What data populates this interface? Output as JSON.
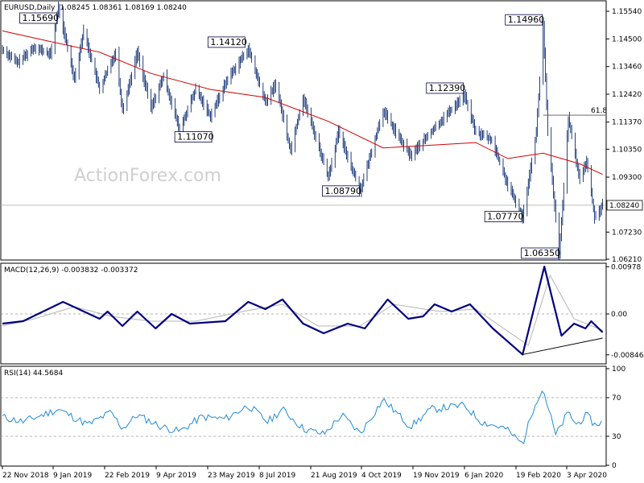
{
  "header": {
    "symbol": "EURUSD,Daily",
    "ohlc": "1.08245 1.08361 1.08169 1.08240"
  },
  "watermark": "ActionForex.com",
  "colors": {
    "candles": "#0b2a6e",
    "ma": "#d40000",
    "macd": "#000080",
    "signal": "#b5b5b5",
    "rsi": "#1f8ad6",
    "fib": "#555555",
    "grid": "#9a9a9a"
  },
  "chart_data": [
    {
      "type": "candlestick",
      "title": "EURUSD,Daily",
      "ylim": [
        1.0621,
        1.1554
      ],
      "y_ticks": [
        "1.15540",
        "1.14500",
        "1.13460",
        "1.12420",
        "1.11370",
        "1.10350",
        "1.09300",
        "1.07230",
        "1.06210"
      ],
      "current_price": "1.08240",
      "x_ticks": [
        "22 Nov 2018",
        "9 Jan 2019",
        "22 Feb 2019",
        "9 Apr 2019",
        "23 May 2019",
        "8 Jul 2019",
        "21 Aug 2019",
        "4 Oct 2019",
        "19 Nov 2019",
        "6 Jan 2020",
        "19 Feb 2020",
        "3 Apr 2020"
      ],
      "path": [
        [
          "2018-11-22",
          1.141
        ],
        [
          "2018-12-05",
          1.136
        ],
        [
          "2018-12-20",
          1.142
        ],
        [
          "2019-01-03",
          1.139
        ],
        [
          "2019-01-10",
          1.1569
        ],
        [
          "2019-01-24",
          1.13
        ],
        [
          "2019-02-01",
          1.148
        ],
        [
          "2019-02-15",
          1.126
        ],
        [
          "2019-03-01",
          1.14
        ],
        [
          "2019-03-07",
          1.118
        ],
        [
          "2019-03-20",
          1.14
        ],
        [
          "2019-04-01",
          1.119
        ],
        [
          "2019-04-12",
          1.131
        ],
        [
          "2019-04-26",
          1.1107
        ],
        [
          "2019-05-10",
          1.126
        ],
        [
          "2019-05-23",
          1.116
        ],
        [
          "2019-06-07",
          1.13
        ],
        [
          "2019-06-25",
          1.1412
        ],
        [
          "2019-07-10",
          1.121
        ],
        [
          "2019-07-19",
          1.128
        ],
        [
          "2019-08-01",
          1.103
        ],
        [
          "2019-08-12",
          1.123
        ],
        [
          "2019-09-03",
          1.093
        ],
        [
          "2019-09-12",
          1.11
        ],
        [
          "2019-10-01",
          1.0879
        ],
        [
          "2019-10-21",
          1.118
        ],
        [
          "2019-11-05",
          1.107
        ],
        [
          "2019-11-14",
          1.101
        ],
        [
          "2019-12-02",
          1.11
        ],
        [
          "2019-12-31",
          1.1239
        ],
        [
          "2020-01-10",
          1.11
        ],
        [
          "2020-01-24",
          1.107
        ],
        [
          "2020-02-07",
          1.09
        ],
        [
          "2020-02-20",
          1.0777
        ],
        [
          "2020-03-03",
          1.11
        ],
        [
          "2020-03-09",
          1.1496
        ],
        [
          "2020-03-13",
          1.11
        ],
        [
          "2020-03-23",
          1.0635
        ],
        [
          "2020-03-31",
          1.115
        ],
        [
          "2020-04-10",
          1.092
        ],
        [
          "2020-04-16",
          1.099
        ],
        [
          "2020-04-23",
          1.078
        ],
        [
          "2020-04-30",
          1.0824
        ]
      ],
      "ma_path": [
        [
          "2018-11-22",
          1.148
        ],
        [
          "2019-01-03",
          1.144
        ],
        [
          "2019-02-15",
          1.14
        ],
        [
          "2019-04-01",
          1.132
        ],
        [
          "2019-05-23",
          1.126
        ],
        [
          "2019-07-10",
          1.123
        ],
        [
          "2019-09-03",
          1.114
        ],
        [
          "2019-10-21",
          1.104
        ],
        [
          "2019-12-02",
          1.105
        ],
        [
          "2020-01-10",
          1.106
        ],
        [
          "2020-02-07",
          1.1
        ],
        [
          "2020-03-09",
          1.102
        ],
        [
          "2020-04-10",
          1.098
        ],
        [
          "2020-04-30",
          1.094
        ]
      ],
      "annotations": [
        {
          "label": "1.15690",
          "date": "2019-01-10",
          "value": 1.1569
        },
        {
          "label": "1.14120",
          "date": "2019-06-25",
          "value": 1.1412
        },
        {
          "label": "1.11070",
          "date": "2019-04-26",
          "value": 1.1107
        },
        {
          "label": "1.08790",
          "date": "2019-10-01",
          "value": 1.0879
        },
        {
          "label": "1.12390",
          "date": "2019-12-31",
          "value": 1.1239
        },
        {
          "label": "1.14960",
          "date": "2020-03-09",
          "value": 1.1496
        },
        {
          "label": "1.07770",
          "date": "2020-02-20",
          "value": 1.0777
        },
        {
          "label": "1.06350",
          "date": "2020-03-23",
          "value": 1.0635
        }
      ],
      "fib_level": {
        "label": "61.8",
        "value": 1.1163,
        "from_date": "2020-03-09"
      }
    },
    {
      "type": "line",
      "title": "MACD(12,26,9) -0.003832 -0.003372",
      "ylim": [
        -0.01,
        0.01
      ],
      "y_ticks": [
        {
          "label": "0.00978",
          "value": 0.00978
        },
        {
          "label": "0.00",
          "value": 0.0
        },
        {
          "label": "-0.008464",
          "value": -0.008464
        }
      ],
      "macd": [
        [
          "2018-11-22",
          -0.002
        ],
        [
          "2018-12-10",
          -0.0015
        ],
        [
          "2019-01-14",
          0.0025
        ],
        [
          "2019-02-15",
          -0.001
        ],
        [
          "2019-02-22",
          0.0005
        ],
        [
          "2019-03-07",
          -0.0025
        ],
        [
          "2019-03-20",
          0.0005
        ],
        [
          "2019-04-05",
          -0.003
        ],
        [
          "2019-04-19",
          0.0
        ],
        [
          "2019-05-05",
          -0.002
        ],
        [
          "2019-06-05",
          -0.0015
        ],
        [
          "2019-06-25",
          0.0025
        ],
        [
          "2019-07-10",
          0.001
        ],
        [
          "2019-07-25",
          0.003
        ],
        [
          "2019-08-12",
          -0.002
        ],
        [
          "2019-08-30",
          -0.004
        ],
        [
          "2019-09-20",
          -0.002
        ],
        [
          "2019-10-05",
          -0.003
        ],
        [
          "2019-10-25",
          0.003
        ],
        [
          "2019-11-12",
          -0.001
        ],
        [
          "2019-11-25",
          -0.0005
        ],
        [
          "2019-12-05",
          0.002
        ],
        [
          "2019-12-20",
          0.0005
        ],
        [
          "2020-01-05",
          0.002
        ],
        [
          "2020-01-25",
          -0.003
        ],
        [
          "2020-02-20",
          -0.0084
        ],
        [
          "2020-03-10",
          0.0098
        ],
        [
          "2020-03-25",
          -0.0045
        ],
        [
          "2020-04-05",
          -0.002
        ],
        [
          "2020-04-15",
          -0.003
        ],
        [
          "2020-04-20",
          -0.0015
        ],
        [
          "2020-04-30",
          -0.0038
        ]
      ],
      "signal": [
        [
          "2018-11-22",
          -0.0025
        ],
        [
          "2018-12-20",
          -0.001
        ],
        [
          "2019-01-24",
          0.0015
        ],
        [
          "2019-02-25",
          -0.0005
        ],
        [
          "2019-04-01",
          -0.0015
        ],
        [
          "2019-05-10",
          -0.0015
        ],
        [
          "2019-06-20",
          0.0005
        ],
        [
          "2019-07-25",
          0.002
        ],
        [
          "2019-08-25",
          -0.0025
        ],
        [
          "2019-10-01",
          -0.0025
        ],
        [
          "2019-10-30",
          0.002
        ],
        [
          "2019-12-10",
          0.0005
        ],
        [
          "2020-01-10",
          0.001
        ],
        [
          "2020-02-25",
          -0.0065
        ],
        [
          "2020-03-15",
          0.008
        ],
        [
          "2020-04-05",
          -0.001
        ],
        [
          "2020-04-30",
          -0.0034
        ]
      ],
      "trendline": [
        [
          "2020-02-20",
          -0.0084
        ],
        [
          "2020-04-30",
          -0.005
        ]
      ]
    },
    {
      "type": "line",
      "title": "RSI(14) 44.5684",
      "ylim": [
        0,
        100
      ],
      "y_ticks": [
        {
          "label": "100",
          "value": 100
        },
        {
          "label": "70",
          "value": 70
        },
        {
          "label": "30",
          "value": 30
        },
        {
          "label": "0",
          "value": 0
        }
      ],
      "levels": [
        70,
        30
      ],
      "rsi": [
        [
          "2018-11-22",
          50
        ],
        [
          "2018-12-10",
          45
        ],
        [
          "2019-01-10",
          58
        ],
        [
          "2019-02-05",
          42
        ],
        [
          "2019-02-25",
          55
        ],
        [
          "2019-03-07",
          38
        ],
        [
          "2019-03-20",
          52
        ],
        [
          "2019-04-10",
          40
        ],
        [
          "2019-04-26",
          35
        ],
        [
          "2019-05-15",
          50
        ],
        [
          "2019-06-05",
          48
        ],
        [
          "2019-06-25",
          62
        ],
        [
          "2019-07-12",
          45
        ],
        [
          "2019-07-25",
          58
        ],
        [
          "2019-08-12",
          38
        ],
        [
          "2019-08-30",
          32
        ],
        [
          "2019-09-15",
          52
        ],
        [
          "2019-10-01",
          33
        ],
        [
          "2019-10-21",
          68
        ],
        [
          "2019-11-14",
          40
        ],
        [
          "2019-12-02",
          58
        ],
        [
          "2019-12-31",
          62
        ],
        [
          "2020-01-15",
          45
        ],
        [
          "2020-02-05",
          38
        ],
        [
          "2020-02-20",
          22
        ],
        [
          "2020-03-02",
          65
        ],
        [
          "2020-03-09",
          79
        ],
        [
          "2020-03-20",
          31
        ],
        [
          "2020-03-31",
          55
        ],
        [
          "2020-04-07",
          42
        ],
        [
          "2020-04-16",
          52
        ],
        [
          "2020-04-23",
          42
        ],
        [
          "2020-04-30",
          45
        ]
      ]
    }
  ]
}
